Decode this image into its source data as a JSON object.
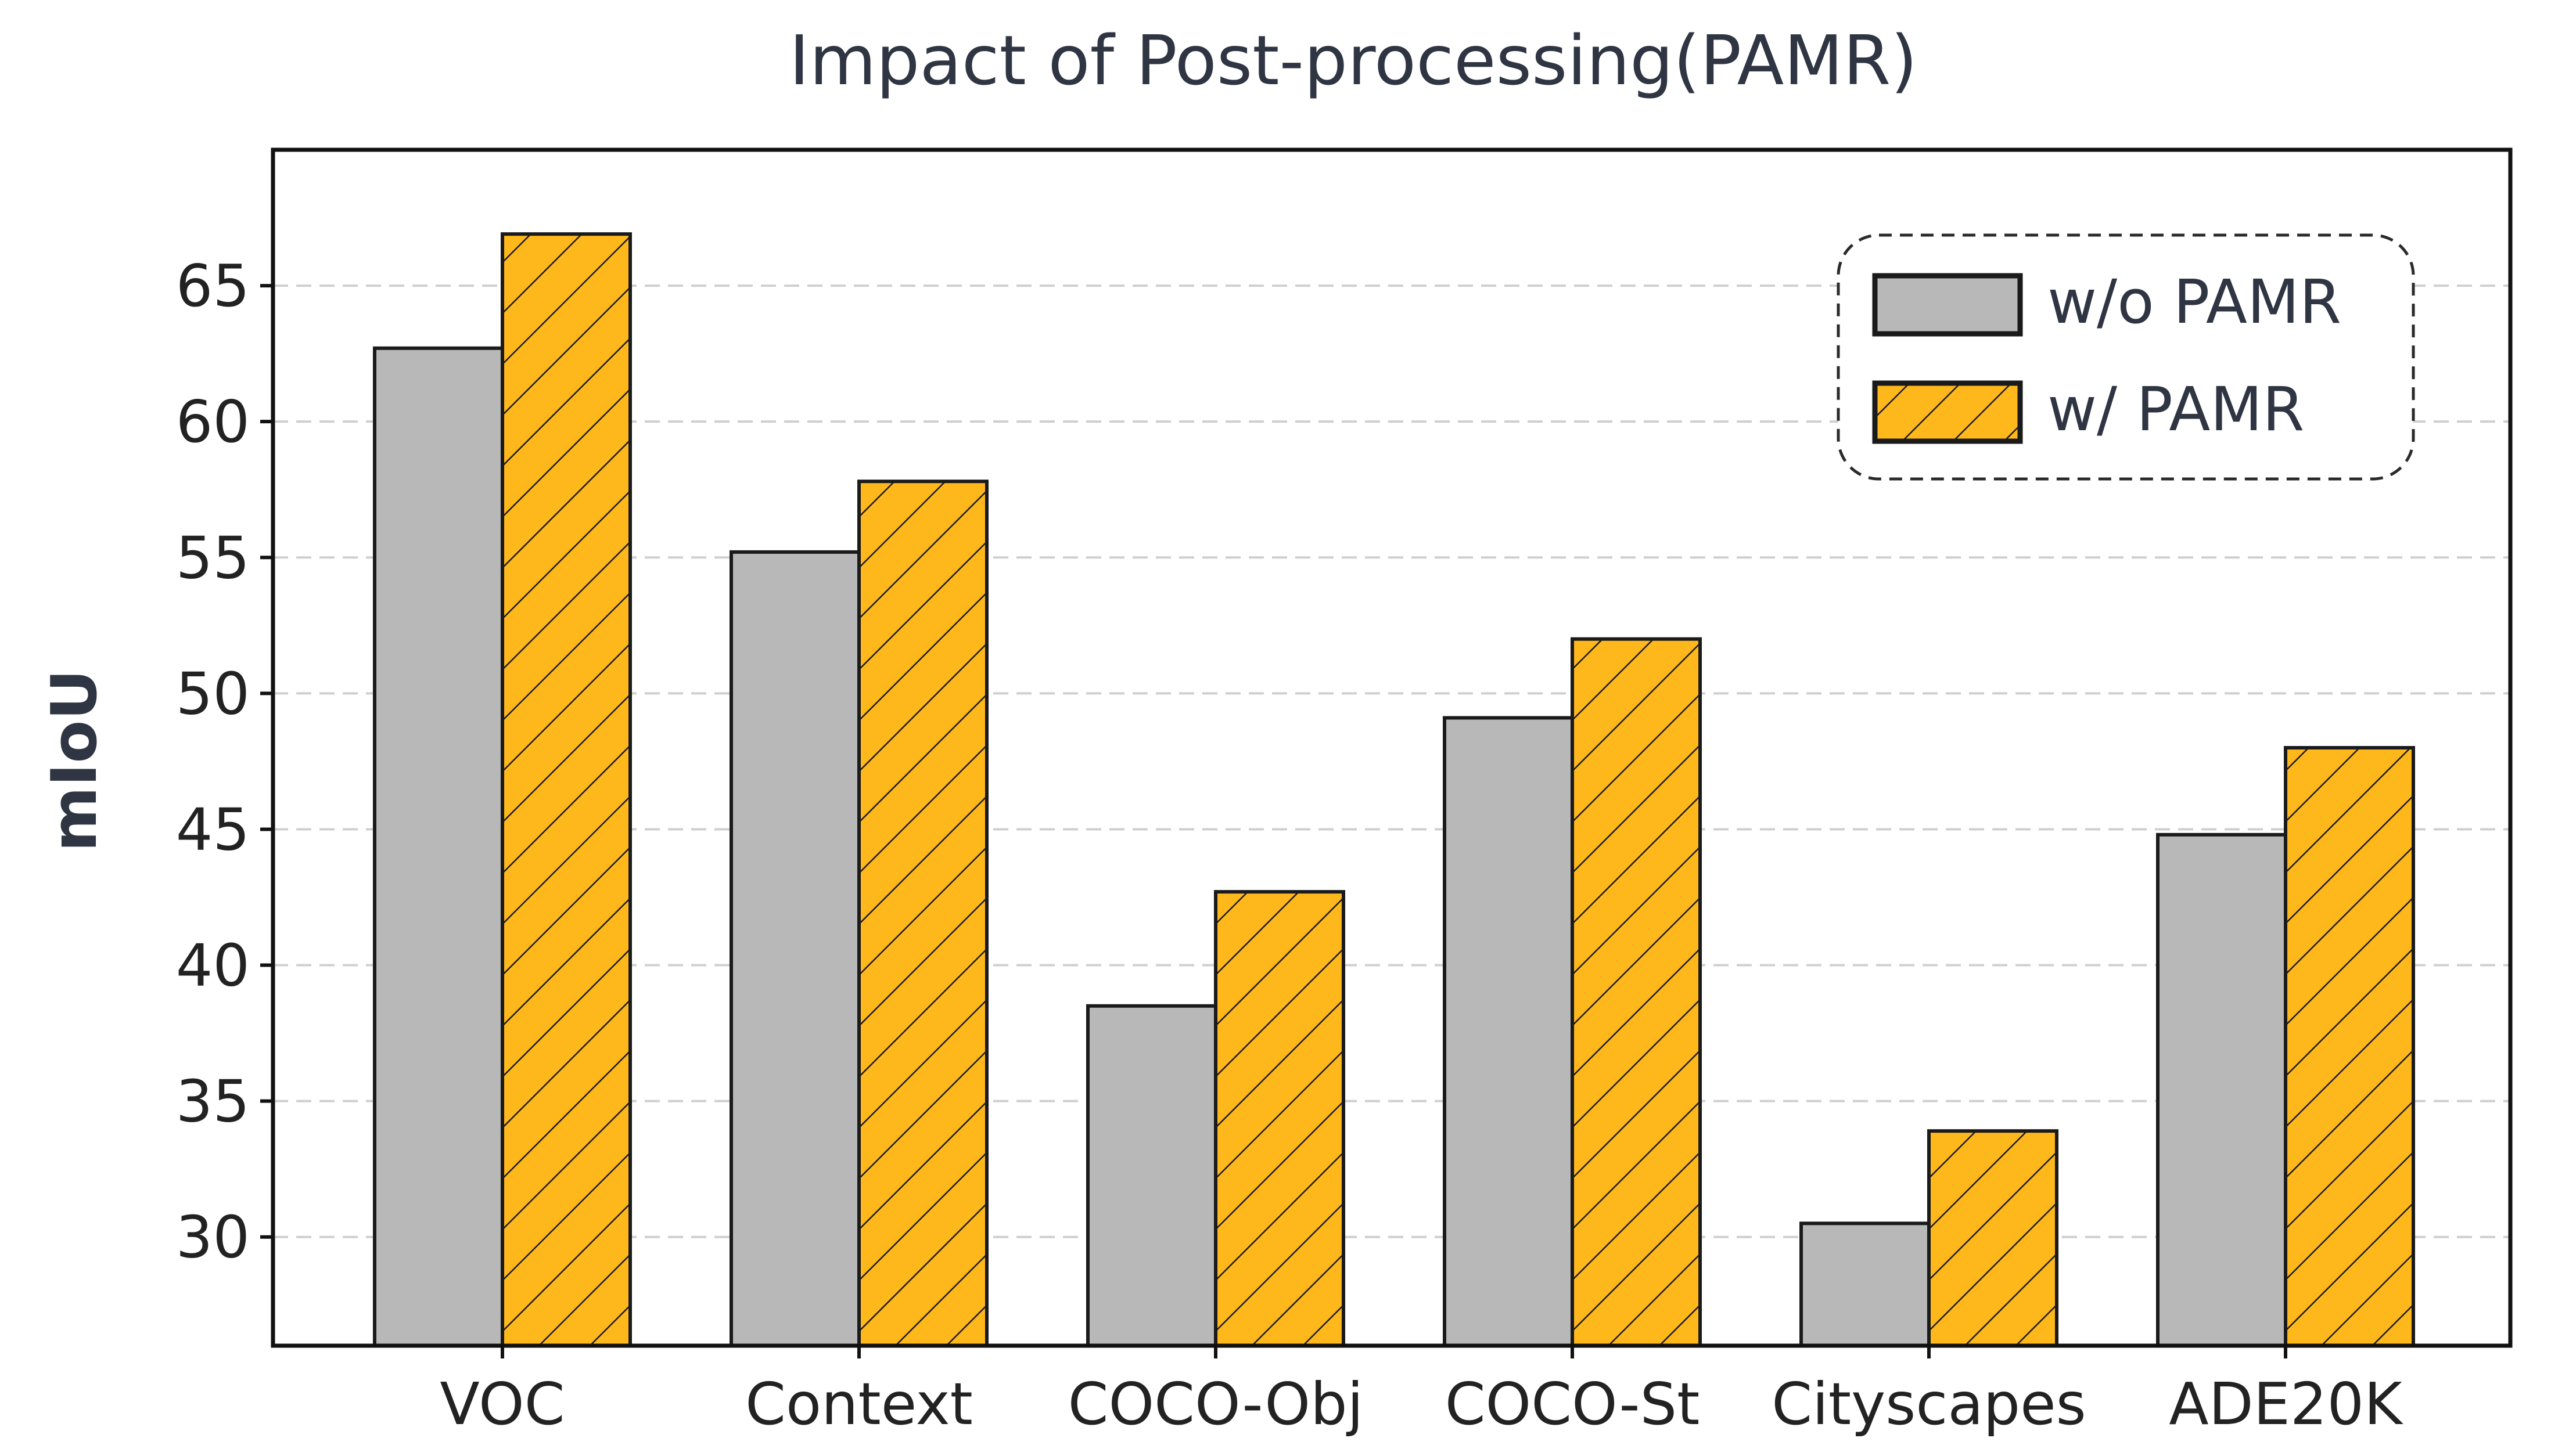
{
  "chart_data": {
    "type": "bar",
    "title": "Impact of Post-processing(PAMR)",
    "xlabel": "",
    "ylabel": "mIoU",
    "categories": [
      "VOC",
      "Context",
      "COCO-Obj",
      "COCO-St",
      "Cityscapes",
      "ADE20K"
    ],
    "series": [
      {
        "name": "w/o PAMR",
        "values": [
          62.7,
          55.2,
          38.5,
          49.1,
          30.5,
          44.8
        ],
        "color": "#b8b8b8",
        "hatch": false
      },
      {
        "name": "w/ PAMR",
        "values": [
          66.9,
          57.8,
          42.7,
          52.0,
          33.9,
          48.0
        ],
        "color": "#ffb81c",
        "hatch": true
      }
    ],
    "ylim": [
      26,
      70
    ],
    "yticks": [
      30,
      35,
      40,
      45,
      50,
      55,
      60,
      65
    ],
    "grid": "y-dashed",
    "legend_position": "top-right"
  }
}
